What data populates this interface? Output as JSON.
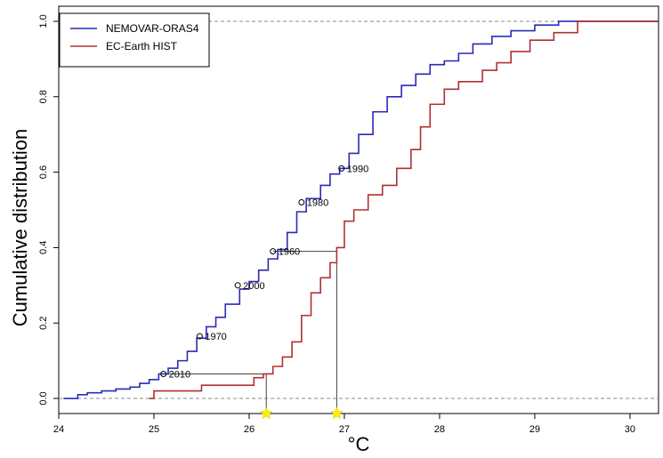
{
  "chart_data": {
    "type": "step-ecdf",
    "xlabel": "°C",
    "ylabel": "Cumulative distribution",
    "xlim": [
      24,
      30.3
    ],
    "ylim": [
      -0.04,
      1.04
    ],
    "x_ticks": [
      24,
      25,
      26,
      27,
      28,
      29,
      30
    ],
    "y_ticks": [
      0.0,
      0.2,
      0.4,
      0.6,
      0.8,
      1.0
    ],
    "y_tick_labels": [
      "0.0",
      "0.2",
      "0.4",
      "0.6",
      "0.8",
      "1.0"
    ],
    "grid": false,
    "legend_position": "top-left",
    "reference_lines": [
      0,
      1
    ],
    "series": [
      {
        "name": "NEMOVAR-ORAS4",
        "color": "#2a2ab8",
        "points": [
          [
            24.05,
            0.0
          ],
          [
            24.2,
            0.01
          ],
          [
            24.3,
            0.015
          ],
          [
            24.45,
            0.02
          ],
          [
            24.6,
            0.025
          ],
          [
            24.75,
            0.03
          ],
          [
            24.85,
            0.04
          ],
          [
            24.95,
            0.05
          ],
          [
            25.05,
            0.065
          ],
          [
            25.15,
            0.08
          ],
          [
            25.25,
            0.1
          ],
          [
            25.35,
            0.125
          ],
          [
            25.45,
            0.16
          ],
          [
            25.55,
            0.19
          ],
          [
            25.65,
            0.215
          ],
          [
            25.75,
            0.25
          ],
          [
            25.9,
            0.29
          ],
          [
            26.0,
            0.31
          ],
          [
            26.1,
            0.34
          ],
          [
            26.2,
            0.37
          ],
          [
            26.3,
            0.395
          ],
          [
            26.4,
            0.44
          ],
          [
            26.5,
            0.495
          ],
          [
            26.6,
            0.53
          ],
          [
            26.75,
            0.565
          ],
          [
            26.85,
            0.595
          ],
          [
            26.95,
            0.61
          ],
          [
            27.05,
            0.65
          ],
          [
            27.15,
            0.7
          ],
          [
            27.3,
            0.76
          ],
          [
            27.45,
            0.8
          ],
          [
            27.6,
            0.83
          ],
          [
            27.75,
            0.86
          ],
          [
            27.9,
            0.885
          ],
          [
            28.05,
            0.895
          ],
          [
            28.2,
            0.915
          ],
          [
            28.35,
            0.94
          ],
          [
            28.55,
            0.96
          ],
          [
            28.75,
            0.975
          ],
          [
            29.0,
            0.99
          ],
          [
            29.25,
            1.0
          ],
          [
            30.3,
            1.0
          ]
        ]
      },
      {
        "name": "EC-Earth HIST",
        "color": "#b03030",
        "points": [
          [
            24.95,
            0.0
          ],
          [
            25.0,
            0.02
          ],
          [
            25.5,
            0.035
          ],
          [
            26.05,
            0.055
          ],
          [
            26.15,
            0.065
          ],
          [
            26.25,
            0.085
          ],
          [
            26.35,
            0.11
          ],
          [
            26.45,
            0.15
          ],
          [
            26.55,
            0.22
          ],
          [
            26.65,
            0.28
          ],
          [
            26.75,
            0.32
          ],
          [
            26.85,
            0.36
          ],
          [
            26.92,
            0.4
          ],
          [
            27.0,
            0.47
          ],
          [
            27.1,
            0.5
          ],
          [
            27.25,
            0.54
          ],
          [
            27.4,
            0.565
          ],
          [
            27.55,
            0.61
          ],
          [
            27.7,
            0.66
          ],
          [
            27.8,
            0.72
          ],
          [
            27.9,
            0.78
          ],
          [
            28.05,
            0.82
          ],
          [
            28.2,
            0.84
          ],
          [
            28.45,
            0.87
          ],
          [
            28.6,
            0.89
          ],
          [
            28.75,
            0.92
          ],
          [
            28.95,
            0.95
          ],
          [
            29.2,
            0.97
          ],
          [
            29.45,
            1.0
          ],
          [
            30.3,
            1.0
          ]
        ]
      }
    ],
    "annotations": [
      {
        "label": "2010",
        "x": 25.1,
        "y": 0.065
      },
      {
        "label": "1970",
        "x": 25.48,
        "y": 0.165
      },
      {
        "label": "2000",
        "x": 25.88,
        "y": 0.3
      },
      {
        "label": "1960",
        "x": 26.25,
        "y": 0.39
      },
      {
        "label": "1980",
        "x": 26.55,
        "y": 0.52
      },
      {
        "label": "1990",
        "x": 26.97,
        "y": 0.61
      }
    ],
    "guide_lines": [
      {
        "x_from": 25.1,
        "y": 0.065,
        "x_to": 26.18
      },
      {
        "x_from": 26.25,
        "y": 0.39,
        "x_to": 26.92
      }
    ],
    "highlight_points": [
      {
        "x": 26.18,
        "color": "#ffee00"
      },
      {
        "x": 26.92,
        "color": "#ffee00"
      }
    ]
  }
}
